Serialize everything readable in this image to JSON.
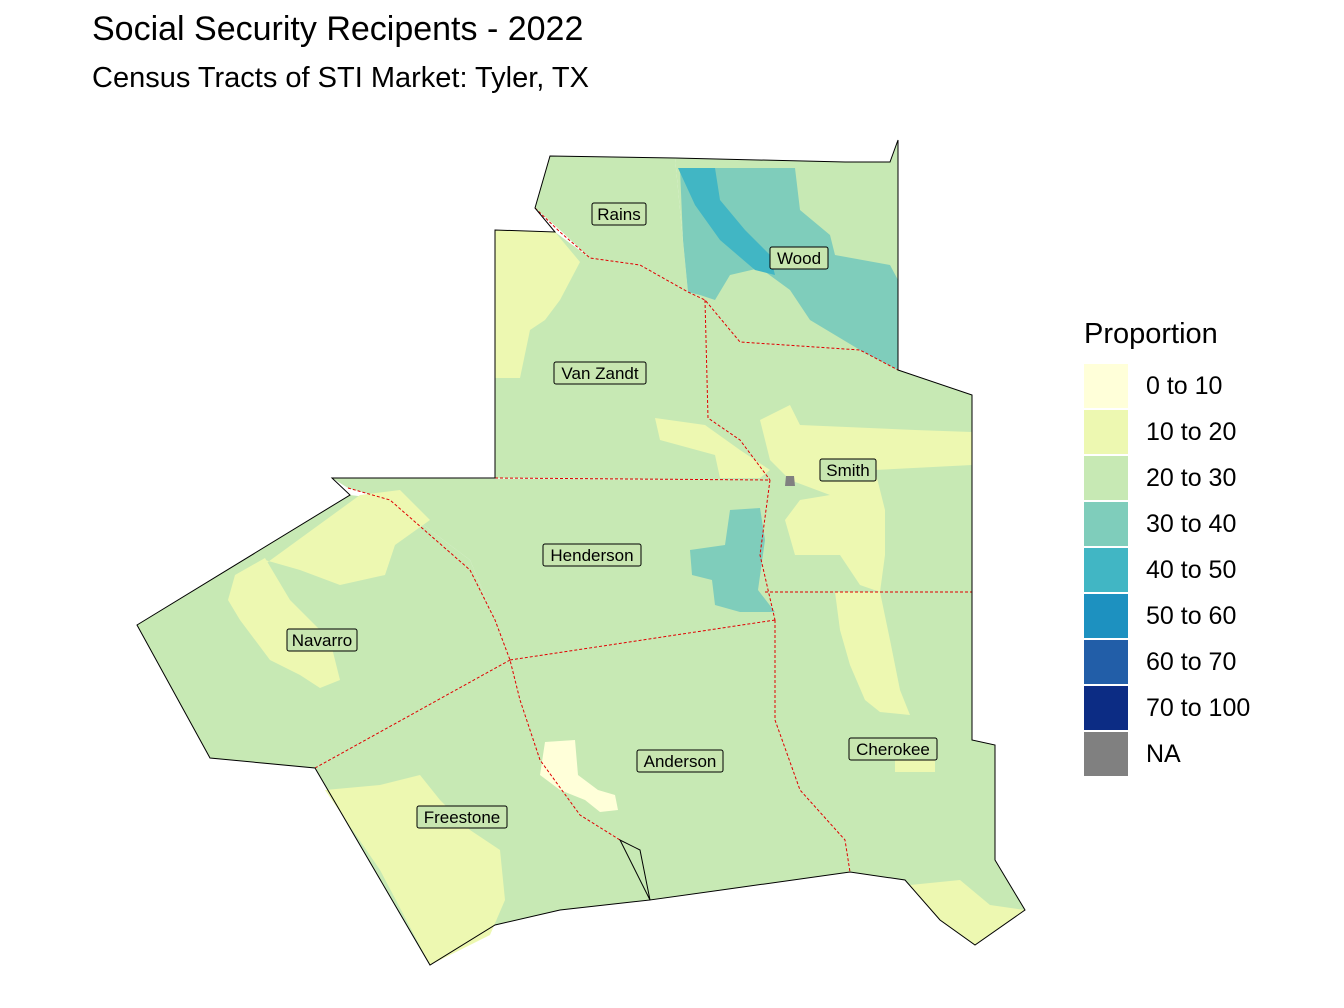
{
  "title": "Social Security Recipents - 2022",
  "subtitle": "Census Tracts of STI Market: Tyler, TX",
  "legend": {
    "title": "Proportion",
    "items": [
      {
        "label": "0 to 10",
        "color": "#ffffd9"
      },
      {
        "label": "10 to 20",
        "color": "#edf8b1"
      },
      {
        "label": "20 to 30",
        "color": "#c7e9b4"
      },
      {
        "label": "30 to 40",
        "color": "#7fcdbb"
      },
      {
        "label": "40 to 50",
        "color": "#41b6c4"
      },
      {
        "label": "50 to 60",
        "color": "#1d91c0"
      },
      {
        "label": "60 to 70",
        "color": "#225ea8"
      },
      {
        "label": "70 to 100",
        "color": "#0c2c84"
      },
      {
        "label": "NA",
        "color": "#808080"
      }
    ]
  },
  "counties": [
    {
      "name": "Rains"
    },
    {
      "name": "Wood"
    },
    {
      "name": "Van Zandt"
    },
    {
      "name": "Smith"
    },
    {
      "name": "Henderson"
    },
    {
      "name": "Navarro"
    },
    {
      "name": "Anderson"
    },
    {
      "name": "Cherokee"
    },
    {
      "name": "Freestone"
    }
  ]
}
